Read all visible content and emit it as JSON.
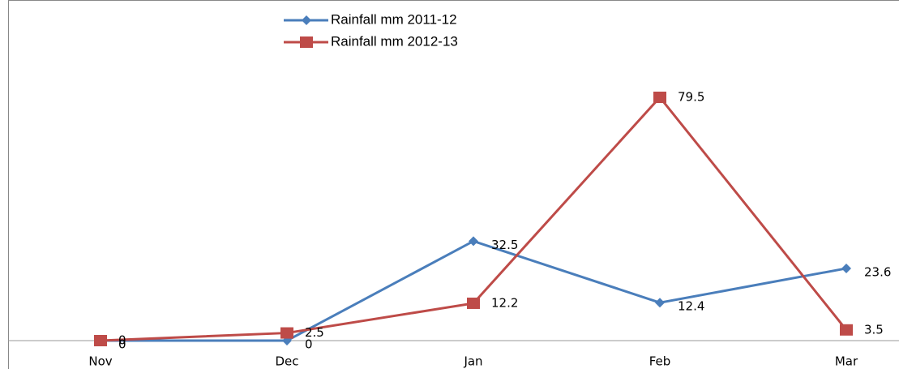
{
  "chart_data": {
    "type": "line",
    "categories": [
      "Nov",
      "Dec",
      "Jan",
      "Feb",
      "Mar"
    ],
    "series": [
      {
        "name": "Rainfall mm 2011-12",
        "color": "#4a7ebb",
        "marker": "diamond",
        "values": [
          0,
          0,
          32.5,
          12.4,
          23.6
        ]
      },
      {
        "name": "Rainfall mm 2012-13",
        "color": "#be4b48",
        "marker": "square",
        "values": [
          0,
          2.5,
          12.2,
          79.5,
          3.5
        ]
      }
    ]
  }
}
